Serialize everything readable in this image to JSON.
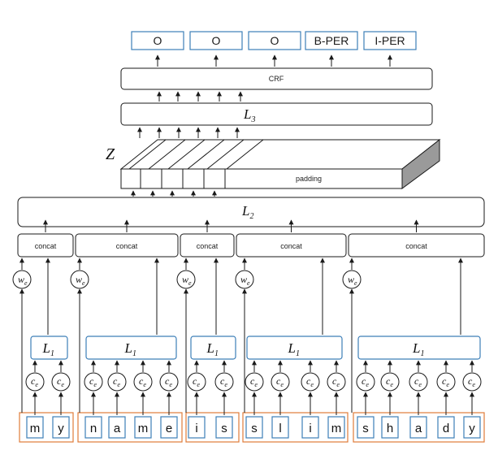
{
  "outputs": [
    "O",
    "O",
    "O",
    "B-PER",
    "I-PER"
  ],
  "crf_label": "CRF",
  "l3": {
    "letter": "L",
    "sub": "3"
  },
  "z_label": "Z",
  "padding_label": "padding",
  "l2": {
    "letter": "L",
    "sub": "2"
  },
  "concat_label": "concat",
  "l1": {
    "letter": "L",
    "sub": "1"
  },
  "char_emb": {
    "letter": "c",
    "sub": "e"
  },
  "word_emb": {
    "letter": "w",
    "sub": "e"
  },
  "words": [
    {
      "chars": [
        "m",
        "y"
      ]
    },
    {
      "chars": [
        "n",
        "a",
        "m",
        "e"
      ]
    },
    {
      "chars": [
        "i",
        "s"
      ]
    },
    {
      "chars": [
        "s",
        "l",
        "i",
        "m"
      ]
    },
    {
      "chars": [
        "s",
        "h",
        "a",
        "d",
        "y"
      ]
    }
  ],
  "colors": {
    "accent_blue": "#3d7fb8",
    "accent_orange": "#e07b39",
    "line": "#1a1a1a",
    "padding_side": "#9a9a9a"
  }
}
